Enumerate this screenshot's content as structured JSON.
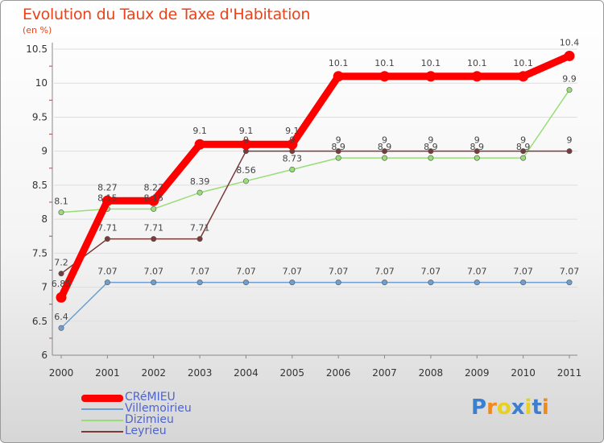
{
  "chart_data": {
    "type": "line",
    "title": "Evolution du Taux de Taxe d'Habitation",
    "ylabel": "(en %)",
    "xlabel": "",
    "categories": [
      "2000",
      "2001",
      "2002",
      "2003",
      "2004",
      "2005",
      "2006",
      "2007",
      "2008",
      "2009",
      "2010",
      "2011"
    ],
    "ylim": [
      6,
      10.5
    ],
    "yticks": [
      "6",
      "6.5",
      "7",
      "7.5",
      "8",
      "8.5",
      "9",
      "9.5",
      "10",
      "10.5"
    ],
    "series": [
      {
        "name": "CRéMIEU",
        "color": "#ff0000",
        "values": [
          6.85,
          8.27,
          8.27,
          9.1,
          9.1,
          9.1,
          10.1,
          10.1,
          10.1,
          10.1,
          10.1,
          10.4
        ],
        "labels": [
          "6.85",
          "8.27",
          "8.27",
          "9.1",
          "9.1",
          "9.1",
          "10.1",
          "10.1",
          "10.1",
          "10.1",
          "10.1",
          "10.4"
        ]
      },
      {
        "name": "Villemoirieu",
        "color": "#6f9fd0",
        "values": [
          6.4,
          7.07,
          7.07,
          7.07,
          7.07,
          7.07,
          7.07,
          7.07,
          7.07,
          7.07,
          7.07,
          7.07
        ],
        "labels": [
          "6.4",
          "7.07",
          "7.07",
          "7.07",
          "7.07",
          "7.07",
          "7.07",
          "7.07",
          "7.07",
          "7.07",
          "7.07",
          "7.07"
        ]
      },
      {
        "name": "Dizimieu",
        "color": "#99dd77",
        "values": [
          8.1,
          8.15,
          8.15,
          8.39,
          8.56,
          8.73,
          8.9,
          8.9,
          8.9,
          8.9,
          8.9,
          9.9
        ],
        "labels": [
          "8.1",
          "8.15",
          "8.15",
          "8.39",
          "8.56",
          "8.73",
          "8.9",
          "8.9",
          "8.9",
          "8.9",
          "8.9",
          "9.9"
        ]
      },
      {
        "name": "Leyrieu",
        "color": "#7a3a3a",
        "values": [
          7.2,
          7.71,
          7.71,
          7.71,
          9.0,
          9.0,
          9.0,
          9.0,
          9.0,
          9.0,
          9.0,
          9.0
        ],
        "labels": [
          "7.2",
          "7.71",
          "7.71",
          "7.71",
          "9",
          "9",
          "9",
          "9",
          "9",
          "9",
          "9",
          "9"
        ]
      }
    ]
  },
  "legend": {
    "items": [
      "CRéMIEU",
      "Villemoirieu",
      "Dizimieu",
      "Leyrieu"
    ]
  },
  "logo": {
    "letters": [
      "P",
      "r",
      "o",
      "x",
      "i",
      "t",
      "i"
    ],
    "colors": [
      "#3a7fd0",
      "#f08a1c",
      "#e8d020",
      "#3a7fd0",
      "#e8d020",
      "#3a7fd0",
      "#f08a1c"
    ]
  }
}
